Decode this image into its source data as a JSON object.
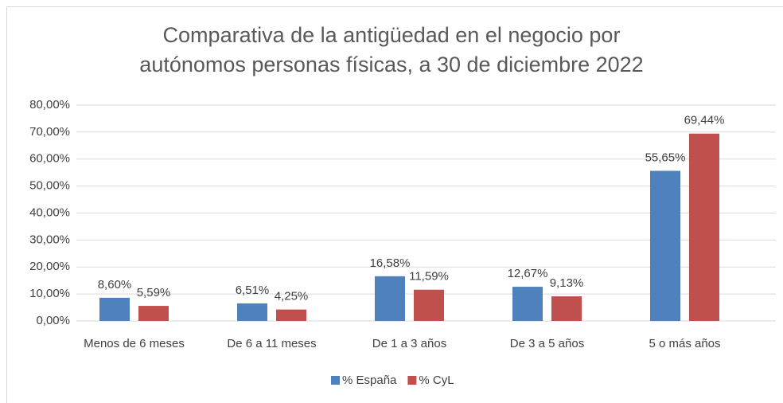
{
  "chart_data": {
    "type": "bar",
    "title": "Comparativa de la antigüedad en el negocio por autónomos personas físicas, a 30 de diciembre 2022",
    "categories": [
      "Menos de 6 meses",
      "De 6 a 11 meses",
      "De 1 a 3 años",
      "De 3 a 5 años",
      "5 o más años"
    ],
    "series": [
      {
        "name": "% España",
        "color": "#4f81bd",
        "values": [
          8.6,
          6.51,
          16.58,
          12.67,
          55.65
        ],
        "value_labels": [
          "8,60%",
          "6,51%",
          "16,58%",
          "12,67%",
          "55,65%"
        ]
      },
      {
        "name": "% CyL",
        "color": "#c0504d",
        "values": [
          5.59,
          4.25,
          11.59,
          9.13,
          69.44
        ],
        "value_labels": [
          "5,59%",
          "4,25%",
          "11,59%",
          "9,13%",
          "69,44%"
        ]
      }
    ],
    "ylim": [
      0,
      80
    ],
    "yticks": [
      {
        "value": 0,
        "label": "0,00%"
      },
      {
        "value": 10,
        "label": "10,00%"
      },
      {
        "value": 20,
        "label": "20,00%"
      },
      {
        "value": 30,
        "label": "30,00%"
      },
      {
        "value": 40,
        "label": "40,00%"
      },
      {
        "value": 50,
        "label": "50,00%"
      },
      {
        "value": 60,
        "label": "60,00%"
      },
      {
        "value": 70,
        "label": "70,00%"
      },
      {
        "value": 80,
        "label": "80,00%"
      }
    ],
    "grid": true,
    "legend": "bottom"
  }
}
